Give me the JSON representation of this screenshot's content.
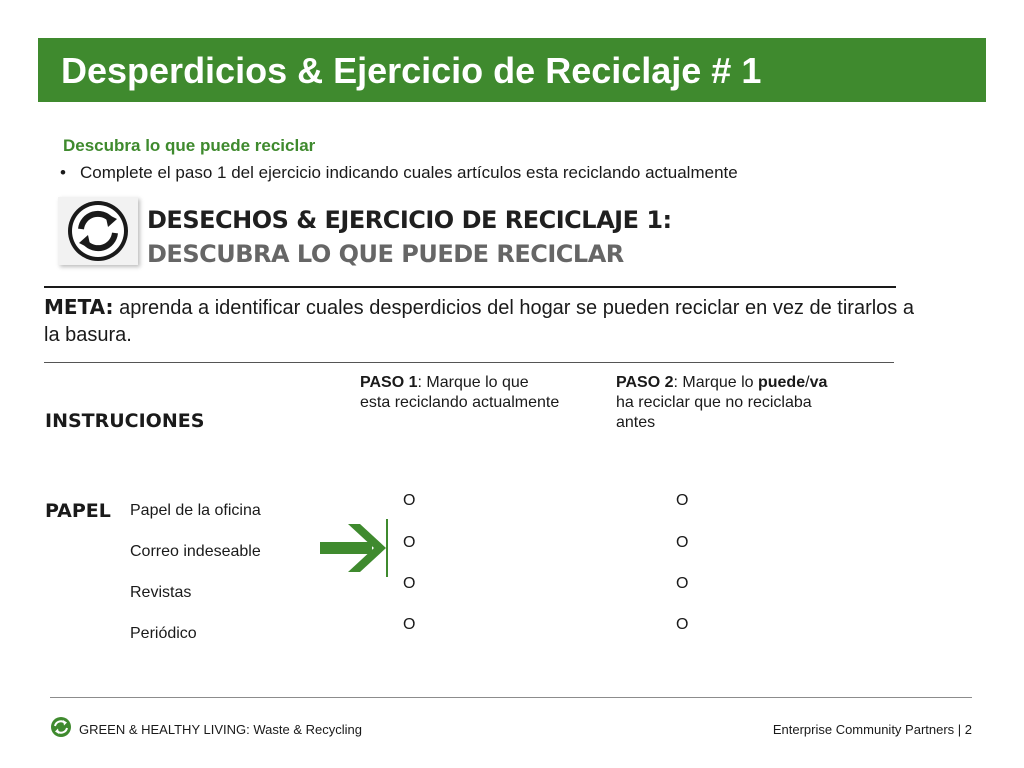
{
  "header": {
    "title": "Desperdicios  & Ejercicio de Reciclaje # 1"
  },
  "intro": {
    "subtitle": "Descubra lo que puede reciclar",
    "bullet": "Complete el paso 1 del ejercicio indicando cuales artículos esta reciclando actualmente"
  },
  "worksheet": {
    "heading_line1": "DESECHOS & EJERCICIO DE RECICLAJE 1:",
    "heading_line2": "DESCUBRA LO QUE PUEDE RECICLAR",
    "meta_label": "META:",
    "meta_text": " aprenda a identificar cuales desperdicios del hogar se pueden reciclar en vez de tirarlos a la basura.",
    "paso1": {
      "label": "PASO 1",
      "text": ": Marque lo que esta reciclando actualmente"
    },
    "paso2": {
      "label": "PASO 2",
      "text1": ": Marque lo ",
      "bold1": "puede",
      "slash": "/",
      "bold2": "va",
      "text2": " ha reciclar que no reciclaba antes"
    },
    "instructions_label": "INSTRUCIONES",
    "category_label": "PAPEL",
    "items": [
      "Papel de la oficina",
      "Correo indeseable",
      "Revistas",
      "Periódico"
    ],
    "circle_mark": "O"
  },
  "footer": {
    "left": "GREEN & HEALTHY LIVING: Waste & Recycling",
    "right": "Enterprise Community Partners | 2"
  },
  "colors": {
    "brand_green": "#3f8a2e"
  },
  "icons": {
    "logo": "recycle-icon",
    "arrow": "arrow-right-icon"
  }
}
